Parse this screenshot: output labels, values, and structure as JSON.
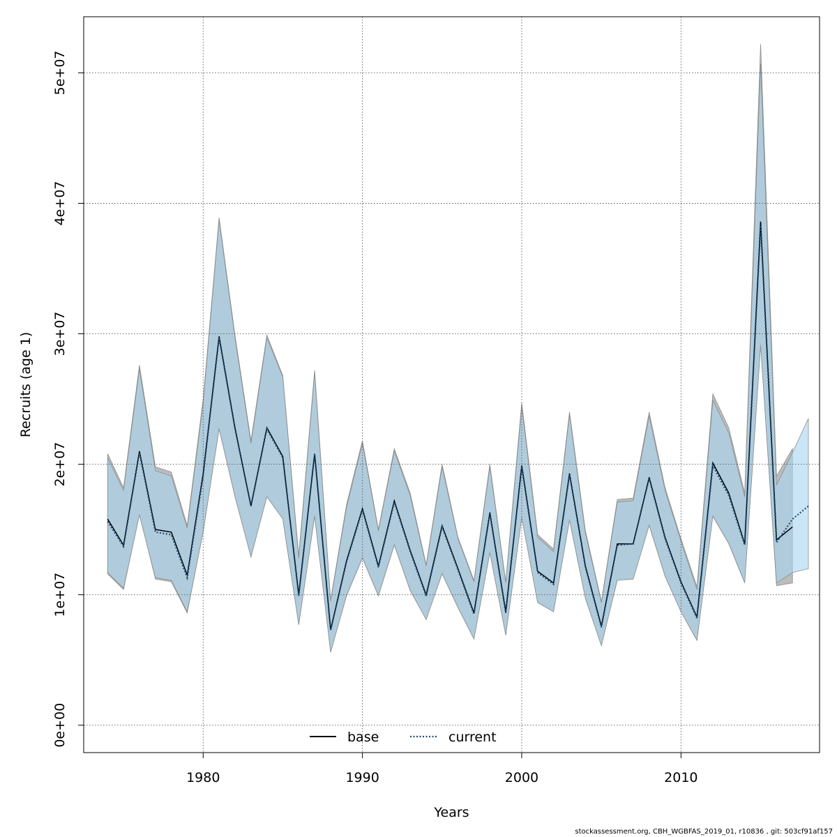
{
  "chart_data": {
    "type": "line",
    "title": "",
    "xlabel": "Years",
    "ylabel": "Recruits (age 1)",
    "xlim": [
      1972.5,
      2018.7
    ],
    "ylim": [
      -2100000,
      54300000
    ],
    "x_ticks": [
      1980,
      1990,
      2000,
      2010
    ],
    "x_tick_labels": [
      "1980",
      "1990",
      "2000",
      "2010"
    ],
    "y_ticks": [
      0,
      10000000,
      20000000,
      30000000,
      40000000,
      50000000
    ],
    "y_tick_labels": [
      "0e+00",
      "1e+07",
      "2e+07",
      "3e+07",
      "4e+07",
      "5e+07"
    ],
    "grid": true,
    "legend_position": "bottom",
    "legend": [
      {
        "name": "base",
        "style": "solid",
        "color": "#000000"
      },
      {
        "name": "current",
        "style": "dotted",
        "color": "#1a4d7a"
      }
    ],
    "series": [
      {
        "name": "base",
        "color": "#000000",
        "band_color": "#a6a6a6",
        "x": [
          1974,
          1975,
          1976,
          1977,
          1978,
          1979,
          1980,
          1981,
          1982,
          1983,
          1984,
          1985,
          1986,
          1987,
          1988,
          1989,
          1990,
          1991,
          1992,
          1993,
          1994,
          1995,
          1996,
          1997,
          1998,
          1999,
          2000,
          2001,
          2002,
          2003,
          2004,
          2005,
          2006,
          2007,
          2008,
          2009,
          2010,
          2011,
          2012,
          2013,
          2014,
          2015,
          2016,
          2017
        ],
        "values": [
          15800000,
          13800000,
          21000000,
          15000000,
          14800000,
          11500000,
          19300000,
          29800000,
          22800000,
          16800000,
          22800000,
          20600000,
          10000000,
          20800000,
          7300000,
          12600000,
          16600000,
          12200000,
          17200000,
          13400000,
          10000000,
          15300000,
          12000000,
          8600000,
          16300000,
          8700000,
          19900000,
          11800000,
          10900000,
          19300000,
          12200000,
          7600000,
          13900000,
          13900000,
          19000000,
          14400000,
          11000000,
          8300000,
          20100000,
          17800000,
          13900000,
          38600000,
          14200000,
          15200000
        ],
        "upper": [
          20800000,
          18200000,
          27600000,
          19800000,
          19400000,
          15300000,
          25000000,
          38900000,
          29900000,
          21800000,
          29900000,
          26800000,
          13000000,
          27200000,
          9600000,
          16900000,
          21800000,
          15000000,
          21200000,
          17800000,
          12300000,
          20000000,
          14400000,
          11100000,
          20000000,
          11000000,
          24700000,
          14600000,
          13500000,
          24000000,
          14900000,
          9500000,
          17300000,
          17400000,
          24000000,
          18200000,
          14300000,
          10600000,
          25400000,
          22800000,
          17800000,
          52200000,
          19100000,
          21200000
        ],
        "lower": [
          11600000,
          10400000,
          16200000,
          11200000,
          11000000,
          8600000,
          14900000,
          22800000,
          17600000,
          12900000,
          17600000,
          15900000,
          7700000,
          16100000,
          5600000,
          10000000,
          12900000,
          10000000,
          13900000,
          10400000,
          8100000,
          11700000,
          9100000,
          6700000,
          13300000,
          6900000,
          16000000,
          9400000,
          8700000,
          15800000,
          9800000,
          6100000,
          11200000,
          11200000,
          15400000,
          11500000,
          8700000,
          6500000,
          16100000,
          14000000,
          11000000,
          29300000,
          10700000,
          10900000
        ]
      },
      {
        "name": "current",
        "color": "#1a4d7a",
        "band_color": "#a9d6f0",
        "x": [
          1974,
          1975,
          1976,
          1977,
          1978,
          1979,
          1980,
          1981,
          1982,
          1983,
          1984,
          1985,
          1986,
          1987,
          1988,
          1989,
          1990,
          1991,
          1992,
          1993,
          1994,
          1995,
          1996,
          1997,
          1998,
          1999,
          2000,
          2001,
          2002,
          2003,
          2004,
          2005,
          2006,
          2007,
          2008,
          2009,
          2010,
          2011,
          2012,
          2013,
          2014,
          2015,
          2016,
          2017,
          2018
        ],
        "values": [
          15600000,
          13700000,
          20900000,
          14800000,
          14600000,
          11300000,
          19100000,
          29700000,
          22700000,
          16800000,
          22700000,
          20500000,
          9900000,
          20800000,
          7300000,
          12500000,
          16500000,
          12100000,
          17100000,
          13300000,
          9900000,
          15200000,
          11900000,
          8500000,
          16200000,
          8600000,
          19800000,
          11700000,
          10800000,
          19200000,
          12100000,
          7500000,
          13800000,
          13900000,
          18900000,
          14300000,
          10900000,
          8200000,
          19900000,
          17600000,
          13800000,
          38300000,
          14000000,
          15800000,
          16800000
        ],
        "upper": [
          20500000,
          18000000,
          27300000,
          19500000,
          19100000,
          15100000,
          24700000,
          38700000,
          29700000,
          21600000,
          29700000,
          26700000,
          12800000,
          27000000,
          9500000,
          16700000,
          21600000,
          14900000,
          21000000,
          17600000,
          12200000,
          19800000,
          14300000,
          11000000,
          19800000,
          10900000,
          24400000,
          14400000,
          13300000,
          23800000,
          14700000,
          9400000,
          17100000,
          17200000,
          23700000,
          18000000,
          14100000,
          10400000,
          24900000,
          22400000,
          17500000,
          50700000,
          18400000,
          20900000,
          23500000
        ],
        "lower": [
          11700000,
          10500000,
          16100000,
          11300000,
          11100000,
          8700000,
          14800000,
          22700000,
          17500000,
          12900000,
          17500000,
          15800000,
          7700000,
          16000000,
          5600000,
          9900000,
          12800000,
          9900000,
          13800000,
          10300000,
          8100000,
          11600000,
          9000000,
          6600000,
          13200000,
          6900000,
          15900000,
          9400000,
          8700000,
          15700000,
          9700000,
          6100000,
          11100000,
          11200000,
          15300000,
          11400000,
          8700000,
          6500000,
          16000000,
          13900000,
          10900000,
          29100000,
          10900000,
          11700000,
          12000000
        ]
      }
    ]
  },
  "footer": "stockassessment.org, CBH_WGBFAS_2019_01, r10836 , git: 503cf91af157"
}
